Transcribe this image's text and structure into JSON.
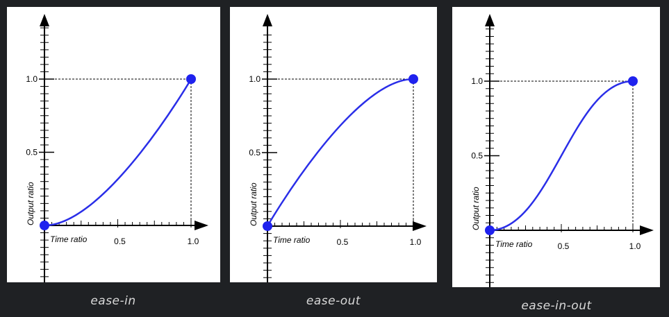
{
  "colors": {
    "background": "#1f2124",
    "panel": "#ffffff",
    "curve": "#2a2ee8",
    "point": "#1f22ee",
    "caption": "#d9d9d9"
  },
  "panels": [
    {
      "caption": "ease-in",
      "x_axis_label": "Time ratio",
      "y_axis_label": "Output ratio",
      "x_ticks": [
        "0.5",
        "1.0"
      ],
      "y_ticks": [
        "0.5",
        "1.0"
      ],
      "bezier": [
        0.42,
        0,
        1,
        1
      ]
    },
    {
      "caption": "ease-out",
      "x_axis_label": "Time ratio",
      "y_axis_label": "Output ratio",
      "x_ticks": [
        "0.5",
        "1.0"
      ],
      "y_ticks": [
        "0.5",
        "1.0"
      ],
      "bezier": [
        0,
        0,
        0.58,
        1
      ]
    },
    {
      "caption": "ease-in-out",
      "x_axis_label": "Time ratio",
      "y_axis_label": "Output ratio",
      "x_ticks": [
        "0.5",
        "1.0"
      ],
      "y_ticks": [
        "0.5",
        "1.0"
      ],
      "bezier": [
        0.42,
        0,
        0.58,
        1
      ]
    }
  ]
}
